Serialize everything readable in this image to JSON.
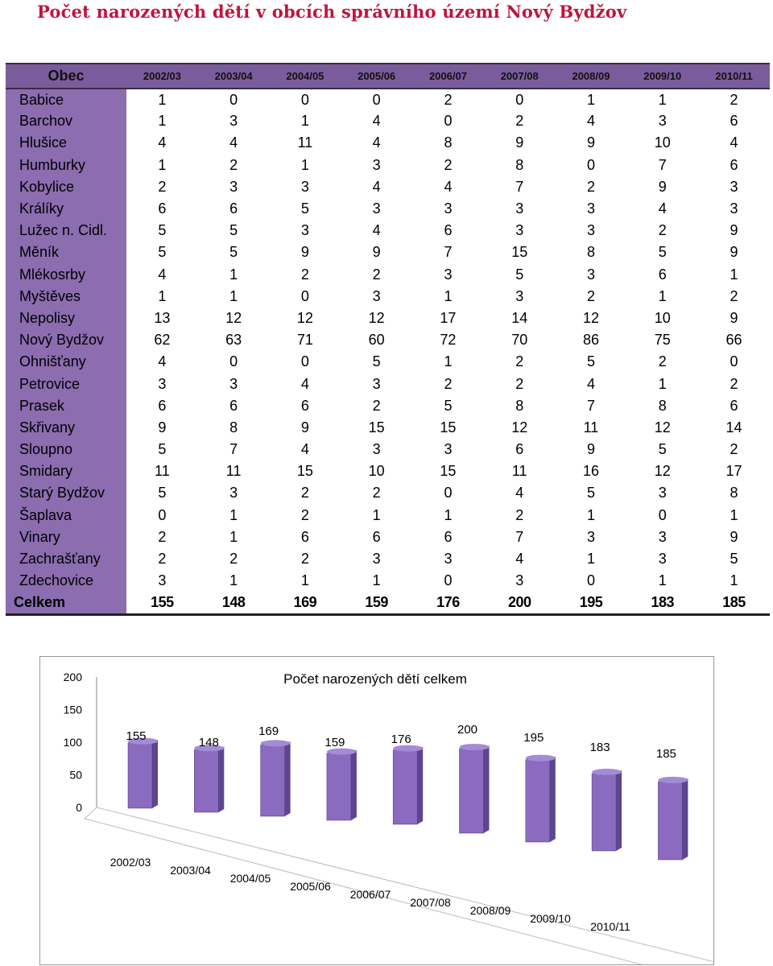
{
  "title": "Počet narozených dětí v obcích správního území Nový Bydžov",
  "table": {
    "header_obec": "Obec",
    "years": [
      "2002/03",
      "2003/04",
      "2004/05",
      "2005/06",
      "2006/07",
      "2007/08",
      "2008/09",
      "2009/10",
      "2010/11"
    ],
    "rows": [
      {
        "obec": "Babice",
        "values": [
          "1",
          "0",
          "0",
          "0",
          "2",
          "0",
          "1",
          "1",
          "2"
        ]
      },
      {
        "obec": "Barchov",
        "values": [
          "1",
          "3",
          "1",
          "4",
          "0",
          "2",
          "4",
          "3",
          "6"
        ]
      },
      {
        "obec": "Hlušice",
        "values": [
          "4",
          "4",
          "11",
          "4",
          "8",
          "9",
          "9",
          "10",
          "4"
        ]
      },
      {
        "obec": "Humburky",
        "values": [
          "1",
          "2",
          "1",
          "3",
          "2",
          "8",
          "0",
          "7",
          "6"
        ]
      },
      {
        "obec": "Kobylice",
        "values": [
          "2",
          "3",
          "3",
          "4",
          "4",
          "7",
          "2",
          "9",
          "3"
        ]
      },
      {
        "obec": "Králíky",
        "values": [
          "6",
          "6",
          "5",
          "3",
          "3",
          "3",
          "3",
          "4",
          "3"
        ]
      },
      {
        "obec": "Lužec n. Cidl.",
        "values": [
          "5",
          "5",
          "3",
          "4",
          "6",
          "3",
          "3",
          "2",
          "9"
        ]
      },
      {
        "obec": "Měník",
        "values": [
          "5",
          "5",
          "9",
          "9",
          "7",
          "15",
          "8",
          "5",
          "9"
        ]
      },
      {
        "obec": "Mlékosrby",
        "values": [
          "4",
          "1",
          "2",
          "2",
          "3",
          "5",
          "3",
          "6",
          "1"
        ]
      },
      {
        "obec": "Myštěves",
        "values": [
          "1",
          "1",
          "0",
          "3",
          "1",
          "3",
          "2",
          "1",
          "2"
        ]
      },
      {
        "obec": "Nepolisy",
        "values": [
          "13",
          "12",
          "12",
          "12",
          "17",
          "14",
          "12",
          "10",
          "9"
        ]
      },
      {
        "obec": "Nový Bydžov",
        "values": [
          "62",
          "63",
          "71",
          "60",
          "72",
          "70",
          "86",
          "75",
          "66"
        ]
      },
      {
        "obec": "Ohnišťany",
        "values": [
          "4",
          "0",
          "0",
          "5",
          "1",
          "2",
          "5",
          "2",
          "0"
        ]
      },
      {
        "obec": "Petrovice",
        "values": [
          "3",
          "3",
          "4",
          "3",
          "2",
          "2",
          "4",
          "1",
          "2"
        ]
      },
      {
        "obec": "Prasek",
        "values": [
          "6",
          "6",
          "6",
          "2",
          "5",
          "8",
          "7",
          "8",
          "6"
        ]
      },
      {
        "obec": "Skřivany",
        "values": [
          "9",
          "8",
          "9",
          "15",
          "15",
          "12",
          "11",
          "12",
          "14"
        ]
      },
      {
        "obec": "Sloupno",
        "values": [
          "5",
          "7",
          "4",
          "3",
          "3",
          "6",
          "9",
          "5",
          "2"
        ]
      },
      {
        "obec": "Smidary",
        "values": [
          "11",
          "11",
          "15",
          "10",
          "15",
          "11",
          "16",
          "12",
          "17"
        ]
      },
      {
        "obec": "Starý Bydžov",
        "values": [
          "5",
          "3",
          "2",
          "2",
          "0",
          "4",
          "5",
          "3",
          "8"
        ]
      },
      {
        "obec": "Šaplava",
        "values": [
          "0",
          "1",
          "2",
          "1",
          "1",
          "2",
          "1",
          "0",
          "1"
        ]
      },
      {
        "obec": "Vinary",
        "values": [
          "2",
          "1",
          "6",
          "6",
          "6",
          "7",
          "3",
          "3",
          "9"
        ]
      },
      {
        "obec": "Zachrašťany",
        "values": [
          "2",
          "2",
          "2",
          "3",
          "3",
          "4",
          "1",
          "3",
          "5"
        ]
      },
      {
        "obec": "Zdechovice",
        "values": [
          "3",
          "1",
          "1",
          "1",
          "0",
          "3",
          "0",
          "1",
          "1"
        ]
      }
    ],
    "total": {
      "obec": "Celkem",
      "values": [
        "155",
        "148",
        "169",
        "159",
        "176",
        "200",
        "195",
        "183",
        "185"
      ]
    }
  },
  "chart_data": {
    "type": "bar",
    "title": "Počet narozených dětí celkem",
    "categories": [
      "2002/03",
      "2003/04",
      "2004/05",
      "2005/06",
      "2006/07",
      "2007/08",
      "2008/09",
      "2009/10",
      "2010/11"
    ],
    "values": [
      155,
      148,
      169,
      159,
      176,
      200,
      195,
      183,
      185
    ],
    "y_ticks": [
      0,
      50,
      100,
      150,
      200
    ],
    "ylim": [
      0,
      200
    ],
    "bar_color": "#8a6bc0",
    "grid": false,
    "legend": "none"
  }
}
